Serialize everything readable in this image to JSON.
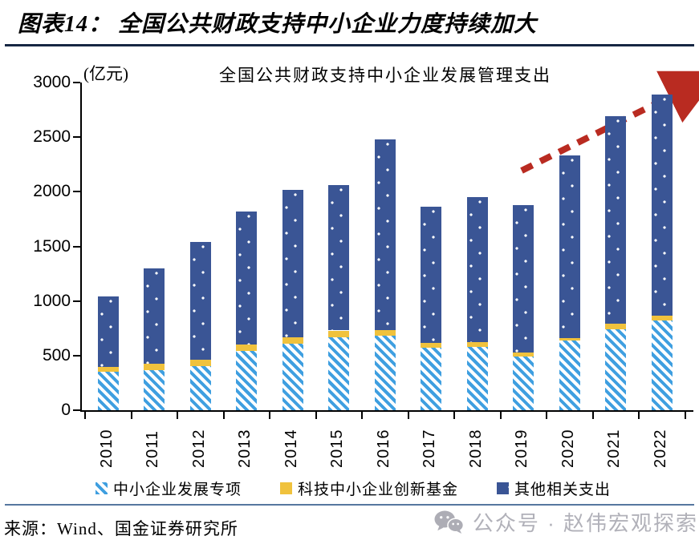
{
  "figure": {
    "title": "图表14： 全国公共财政支持中小企业力度持续加大",
    "source": "来源：Wind、国金证券研究所",
    "watermark": "公众号 · 赵伟宏观探索"
  },
  "chart_data": {
    "type": "bar",
    "stacked": true,
    "title": "全国公共财政支持中小企业发展管理支出",
    "unit_label": "(亿元)",
    "categories": [
      "2010",
      "2011",
      "2012",
      "2013",
      "2014",
      "2015",
      "2016",
      "2017",
      "2018",
      "2019",
      "2020",
      "2021",
      "2022"
    ],
    "series": [
      {
        "name": "中小企业发展专项",
        "style": "seg-hatch",
        "color": "#3f9fe0",
        "values": [
          350,
          370,
          405,
          540,
          610,
          670,
          680,
          575,
          580,
          495,
          635,
          740,
          825
        ]
      },
      {
        "name": "科技中小企业创新基金",
        "style": "seg-yellow",
        "color": "#f0c23d",
        "values": [
          45,
          55,
          60,
          65,
          60,
          60,
          50,
          40,
          40,
          30,
          25,
          50,
          40
        ]
      },
      {
        "name": "其他相关支出",
        "style": "seg-dots",
        "color": "#3a5595",
        "values": [
          645,
          875,
          1075,
          1215,
          1350,
          1330,
          1750,
          1245,
          1330,
          1355,
          1670,
          1900,
          2025
        ]
      }
    ],
    "totals": [
      1040,
      1300,
      1540,
      1820,
      2020,
      2060,
      2480,
      1860,
      1950,
      1880,
      2330,
      2690,
      2890
    ],
    "ylim": [
      0,
      3000
    ],
    "yticks": [
      0,
      500,
      1000,
      1500,
      2000,
      2500,
      3000
    ],
    "xlabel": "",
    "ylabel": "(亿元)",
    "grid": false,
    "legend_position": "bottom",
    "annotation": {
      "type": "dashed-arrow-up-right",
      "color": "#b92b21"
    }
  },
  "colors": {
    "bar_dark_blue": "#3a5595",
    "bar_yellow": "#f0c23d",
    "bar_hatch_blue": "#3f9fe0",
    "arrow_red": "#b92b21",
    "title_rule": "#162743",
    "footer_rule": "#56779f",
    "watermark_gray": "#b1b1b9"
  }
}
